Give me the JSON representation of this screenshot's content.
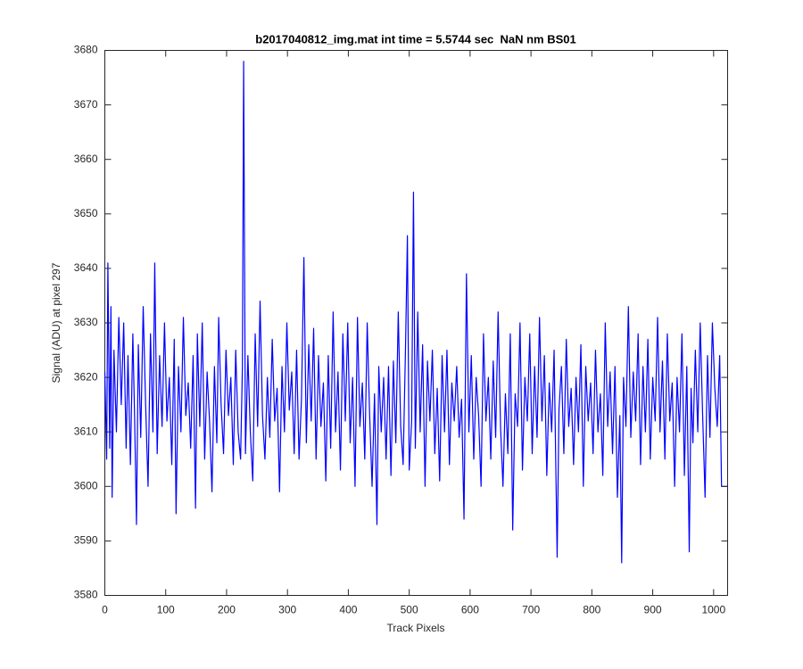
{
  "chart_data": {
    "type": "line",
    "title": "b2017040812_img.mat int time = 5.5744 sec  NaN nm BS01",
    "xlabel": "Track Pixels",
    "ylabel": "Signal (ADU) at pixel 297",
    "xlim": [
      0,
      1023
    ],
    "ylim": [
      3580,
      3680
    ],
    "xticks": [
      0,
      100,
      200,
      300,
      400,
      500,
      600,
      700,
      800,
      900,
      1000
    ],
    "yticks": [
      3580,
      3590,
      3600,
      3610,
      3620,
      3630,
      3640,
      3650,
      3660,
      3670,
      3680
    ],
    "color": "#0000ff",
    "x": [
      0,
      3,
      5,
      8,
      10,
      12,
      15,
      19,
      23,
      27,
      31,
      35,
      38,
      42,
      46,
      49,
      52,
      55,
      59,
      63,
      67,
      71,
      75,
      79,
      82,
      86,
      90,
      94,
      98,
      102,
      106,
      110,
      114,
      117,
      121,
      125,
      129,
      133,
      137,
      141,
      145,
      149,
      152,
      156,
      160,
      164,
      168,
      172,
      176,
      180,
      184,
      187,
      191,
      195,
      199,
      203,
      207,
      211,
      215,
      219,
      223,
      226,
      228,
      231,
      235,
      239,
      243,
      247,
      251,
      255,
      259,
      263,
      267,
      271,
      275,
      279,
      283,
      287,
      291,
      295,
      299,
      303,
      307,
      311,
      315,
      319,
      323,
      327,
      331,
      335,
      339,
      343,
      347,
      351,
      355,
      359,
      363,
      367,
      371,
      375,
      379,
      383,
      387,
      391,
      395,
      399,
      403,
      407,
      411,
      415,
      419,
      423,
      427,
      431,
      435,
      439,
      443,
      447,
      450,
      454,
      458,
      462,
      466,
      470,
      474,
      478,
      482,
      486,
      490,
      494,
      497,
      500,
      504,
      507,
      510,
      514,
      518,
      522,
      526,
      530,
      534,
      538,
      542,
      546,
      550,
      554,
      558,
      562,
      566,
      570,
      574,
      578,
      582,
      586,
      590,
      594,
      598,
      602,
      606,
      610,
      614,
      618,
      622,
      626,
      630,
      634,
      638,
      642,
      646,
      650,
      654,
      658,
      662,
      666,
      670,
      674,
      678,
      682,
      686,
      690,
      694,
      698,
      702,
      706,
      710,
      714,
      718,
      722,
      726,
      730,
      734,
      738,
      743,
      746,
      750,
      754,
      758,
      762,
      766,
      770,
      774,
      778,
      782,
      786,
      790,
      794,
      798,
      802,
      806,
      810,
      814,
      818,
      822,
      826,
      830,
      834,
      838,
      842,
      846,
      849,
      852,
      856,
      860,
      864,
      868,
      872,
      876,
      880,
      884,
      888,
      892,
      896,
      900,
      904,
      908,
      912,
      916,
      920,
      924,
      928,
      932,
      936,
      940,
      944,
      948,
      952,
      956,
      960,
      963,
      966,
      970,
      974,
      978,
      982,
      986,
      990,
      994,
      998,
      1002,
      1006,
      1010,
      1013,
      1023
    ],
    "values": [
      3621,
      3605,
      3641,
      3607,
      3633,
      3598,
      3625,
      3610,
      3631,
      3615,
      3630,
      3607,
      3624,
      3604,
      3628,
      3612,
      3593,
      3626,
      3609,
      3633,
      3615,
      3600,
      3628,
      3610,
      3641,
      3606,
      3624,
      3611,
      3630,
      3612,
      3620,
      3604,
      3627,
      3595,
      3622,
      3610,
      3631,
      3613,
      3619,
      3607,
      3624,
      3596,
      3628,
      3611,
      3630,
      3605,
      3621,
      3612,
      3599,
      3622,
      3608,
      3631,
      3615,
      3606,
      3625,
      3613,
      3620,
      3604,
      3625,
      3610,
      3605,
      3622,
      3678,
      3606,
      3624,
      3610,
      3601,
      3628,
      3611,
      3634,
      3613,
      3605,
      3620,
      3609,
      3627,
      3612,
      3618,
      3599,
      3622,
      3610,
      3630,
      3614,
      3621,
      3606,
      3625,
      3605,
      3616,
      3642,
      3608,
      3626,
      3612,
      3629,
      3605,
      3624,
      3611,
      3619,
      3601,
      3624,
      3607,
      3632,
      3610,
      3621,
      3603,
      3628,
      3612,
      3630,
      3608,
      3620,
      3600,
      3631,
      3611,
      3619,
      3605,
      3630,
      3613,
      3600,
      3617,
      3593,
      3622,
      3610,
      3620,
      3605,
      3622,
      3602,
      3623,
      3608,
      3632,
      3611,
      3604,
      3626,
      3646,
      3603,
      3612,
      3654,
      3607,
      3632,
      3610,
      3626,
      3600,
      3623,
      3612,
      3625,
      3606,
      3618,
      3601,
      3624,
      3610,
      3625,
      3604,
      3619,
      3612,
      3622,
      3609,
      3616,
      3594,
      3639,
      3610,
      3624,
      3605,
      3620,
      3613,
      3600,
      3628,
      3612,
      3620,
      3605,
      3623,
      3609,
      3632,
      3611,
      3600,
      3617,
      3606,
      3628,
      3592,
      3617,
      3611,
      3630,
      3603,
      3620,
      3612,
      3628,
      3606,
      3622,
      3609,
      3631,
      3612,
      3624,
      3602,
      3619,
      3610,
      3625,
      3587,
      3614,
      3622,
      3606,
      3627,
      3611,
      3618,
      3604,
      3620,
      3610,
      3626,
      3600,
      3622,
      3612,
      3619,
      3606,
      3625,
      3610,
      3617,
      3602,
      3630,
      3611,
      3621,
      3606,
      3622,
      3598,
      3613,
      3586,
      3620,
      3611,
      3633,
      3609,
      3621,
      3612,
      3628,
      3604,
      3622,
      3610,
      3627,
      3605,
      3620,
      3612,
      3631,
      3610,
      3623,
      3605,
      3628,
      3612,
      3619,
      3600,
      3620,
      3610,
      3628,
      3602,
      3622,
      3588,
      3618,
      3608,
      3625,
      3610,
      3630,
      3613,
      3598,
      3624,
      3609,
      3630,
      3618,
      3611,
      3624,
      3600,
      3600
    ]
  }
}
